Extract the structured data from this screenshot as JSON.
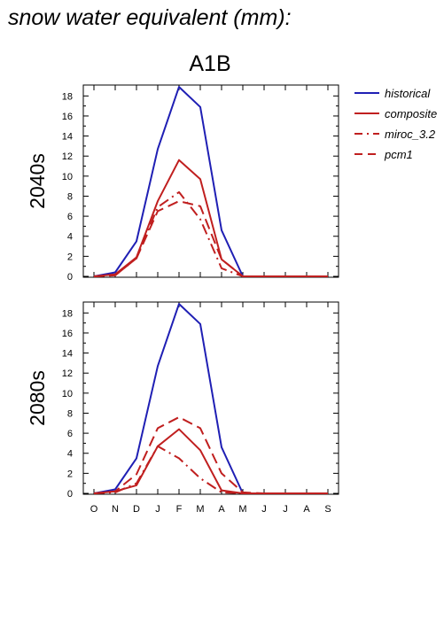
{
  "title": "snow water equivalent (mm):",
  "scenario": "A1B",
  "legend": [
    {
      "name": "historical",
      "color": "#1f1fb4",
      "dash": "solid"
    },
    {
      "name": "composite",
      "color": "#c01f1f",
      "dash": "solid"
    },
    {
      "name": "miroc_3.2",
      "color": "#c01f1f",
      "dash": "dashdot"
    },
    {
      "name": "pcm1",
      "color": "#c01f1f",
      "dash": "dash"
    }
  ],
  "chart_data": [
    {
      "type": "line",
      "ylabel": "2040s",
      "categories": [
        "O",
        "N",
        "D",
        "J",
        "F",
        "M",
        "A",
        "M",
        "J",
        "J",
        "A",
        "S"
      ],
      "ylim": [
        0,
        19
      ],
      "yticks": [
        0,
        2,
        4,
        6,
        8,
        10,
        12,
        14,
        16,
        18
      ],
      "series": [
        {
          "name": "historical",
          "values": [
            0,
            0.4,
            3.5,
            12.7,
            18.9,
            16.9,
            4.6,
            0,
            0,
            0,
            0,
            0
          ]
        },
        {
          "name": "composite",
          "values": [
            0,
            0.2,
            1.9,
            7.5,
            11.6,
            9.7,
            1.7,
            0,
            0,
            0,
            0,
            0
          ]
        },
        {
          "name": "miroc_3.2",
          "values": [
            0,
            0.1,
            1.8,
            6.9,
            8.4,
            5.7,
            0.8,
            0,
            0,
            0,
            0,
            0
          ]
        },
        {
          "name": "pcm1",
          "values": [
            0,
            0.1,
            1.8,
            6.5,
            7.5,
            7.0,
            1.7,
            0,
            0,
            0,
            0,
            0
          ]
        }
      ]
    },
    {
      "type": "line",
      "ylabel": "2080s",
      "categories": [
        "O",
        "N",
        "D",
        "J",
        "F",
        "M",
        "A",
        "M",
        "J",
        "J",
        "A",
        "S"
      ],
      "ylim": [
        0,
        19
      ],
      "yticks": [
        0,
        2,
        4,
        6,
        8,
        10,
        12,
        14,
        16,
        18
      ],
      "series": [
        {
          "name": "historical",
          "values": [
            0,
            0.4,
            3.5,
            12.7,
            18.9,
            16.9,
            4.6,
            0,
            0,
            0,
            0,
            0
          ]
        },
        {
          "name": "composite",
          "values": [
            0,
            0.2,
            0.8,
            4.7,
            6.4,
            4.3,
            0.3,
            0,
            0,
            0,
            0,
            0
          ]
        },
        {
          "name": "miroc_3.2",
          "values": [
            0,
            0.1,
            1.0,
            4.7,
            3.5,
            1.5,
            0.1,
            0,
            0,
            0,
            0,
            0
          ]
        },
        {
          "name": "pcm1",
          "values": [
            0,
            0.2,
            1.9,
            6.5,
            7.6,
            6.5,
            2.0,
            0.1,
            0,
            0,
            0,
            0
          ]
        }
      ]
    }
  ]
}
